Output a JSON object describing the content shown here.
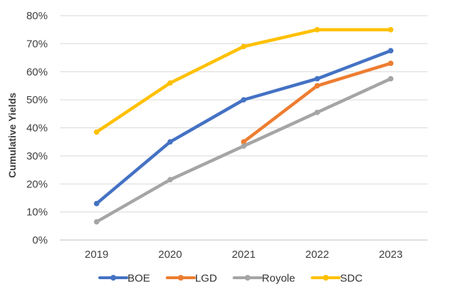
{
  "chart_data": {
    "type": "line",
    "title": "",
    "xlabel": "",
    "ylabel": "Cumulative Yields",
    "categories": [
      "2019",
      "2020",
      "2021",
      "2022",
      "2023"
    ],
    "ylim": [
      0,
      80
    ],
    "yticks": [
      0,
      10,
      20,
      30,
      40,
      50,
      60,
      70,
      80
    ],
    "ytick_labels": [
      "0%",
      "10%",
      "20%",
      "30%",
      "40%",
      "50%",
      "60%",
      "70%",
      "80%"
    ],
    "grid": true,
    "legend": "bottom",
    "series": [
      {
        "name": "BOE",
        "color": "#4472c4",
        "values": [
          13,
          35,
          50,
          57.5,
          67.5
        ]
      },
      {
        "name": "LGD",
        "color": "#ed7d31",
        "values": [
          null,
          null,
          35,
          55,
          63
        ]
      },
      {
        "name": "Royole",
        "color": "#a5a5a5",
        "values": [
          6.5,
          21.5,
          33.5,
          45.5,
          57.5
        ]
      },
      {
        "name": "SDC",
        "color": "#ffc000",
        "values": [
          38.5,
          56,
          69,
          75,
          75
        ]
      }
    ]
  }
}
